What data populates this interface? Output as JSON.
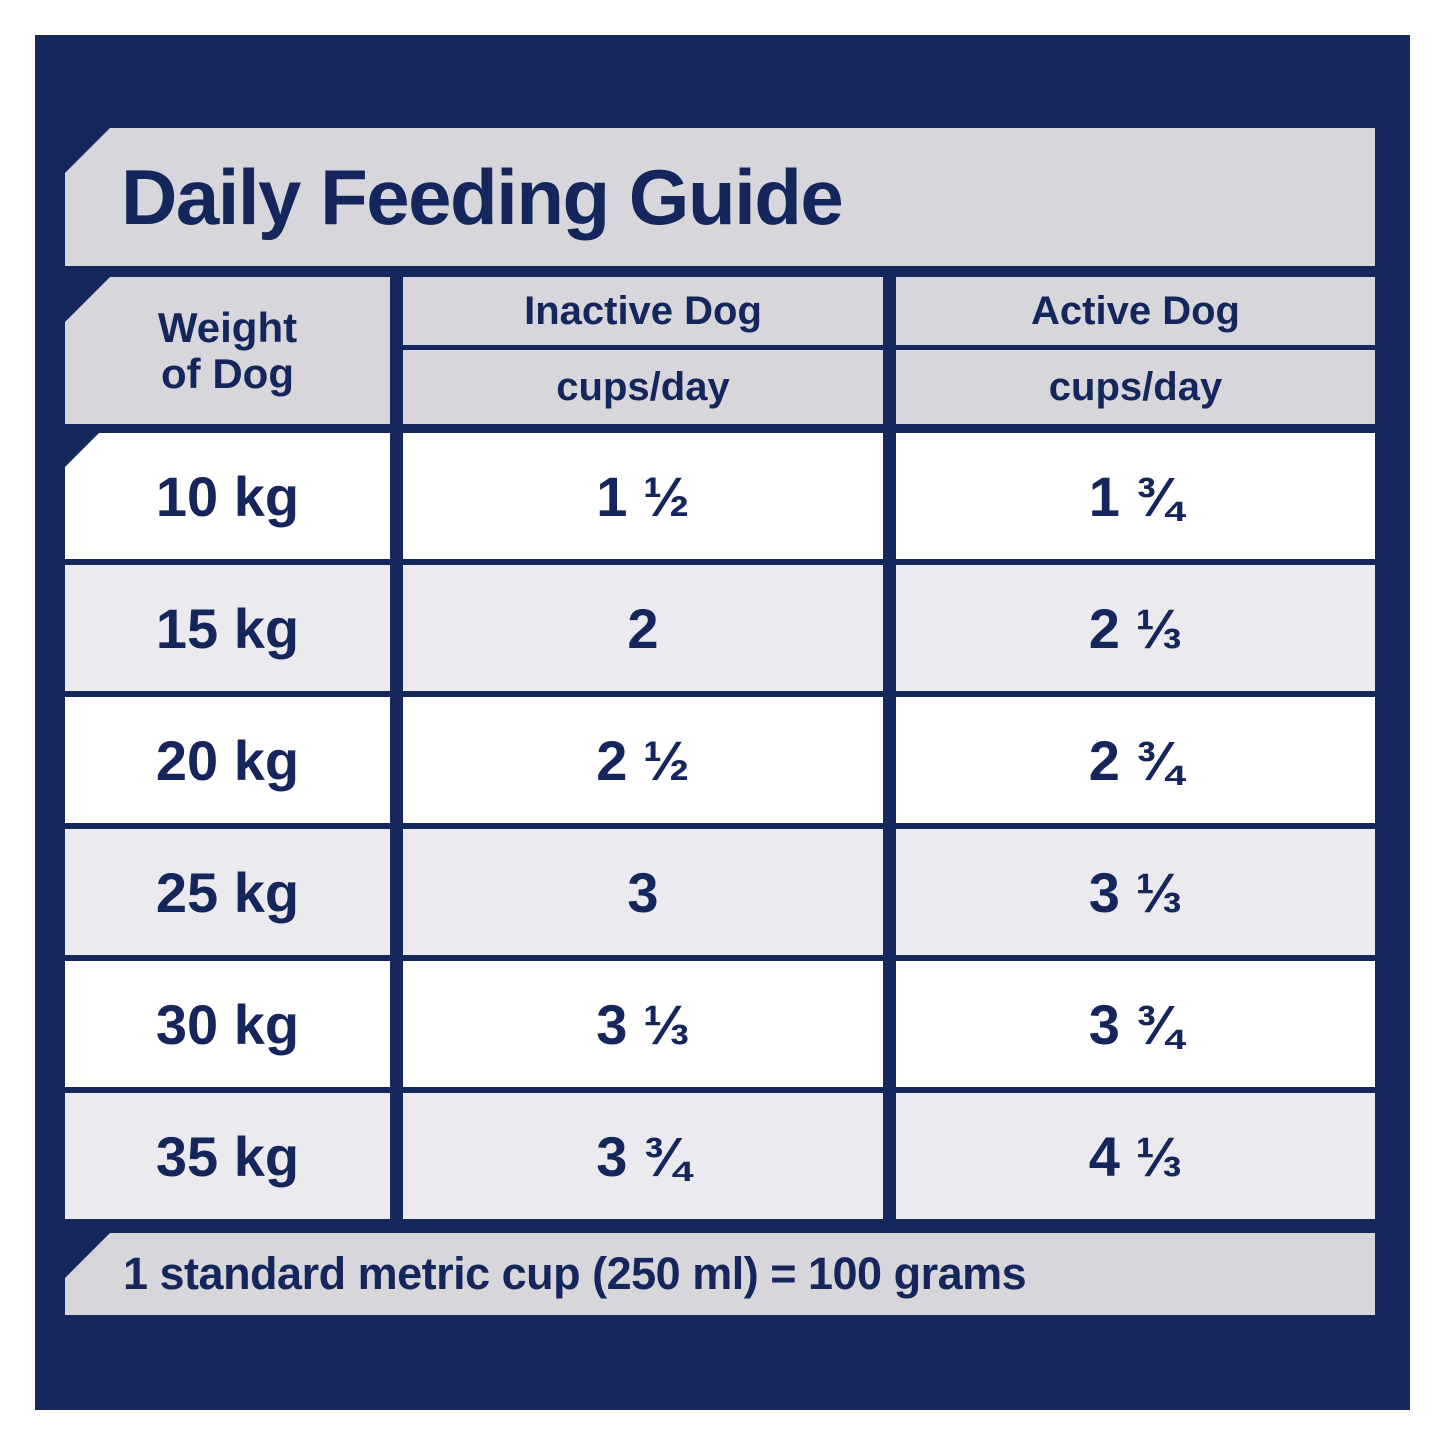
{
  "colors": {
    "page_background": "#FFFFFF",
    "panel_navy": "#16275B",
    "banner_gray": "#D7D7DB",
    "row_gray": "#EAEAEF",
    "row_white": "#FFFFFF",
    "text_navy": "#14265B"
  },
  "title": "Daily Feeding Guide",
  "table": {
    "weight_header_line1": "Weight",
    "weight_header_line2": "of Dog",
    "inactive_header": "Inactive Dog",
    "inactive_subheader": "cups/day",
    "active_header": "Active Dog",
    "active_subheader": "cups/day",
    "rows": [
      {
        "weight": "10 kg",
        "inactive": "1 ½",
        "active": "1 ¾"
      },
      {
        "weight": "15 kg",
        "inactive": "2",
        "active": "2 ⅓"
      },
      {
        "weight": "20 kg",
        "inactive": "2 ½",
        "active": "2 ¾"
      },
      {
        "weight": "25 kg",
        "inactive": "3",
        "active": "3 ⅓"
      },
      {
        "weight": "30 kg",
        "inactive": "3 ⅓",
        "active": "3 ¾"
      },
      {
        "weight": "35 kg",
        "inactive": "3 ¾",
        "active": "4 ⅓"
      }
    ]
  },
  "footer_note": "1 standard metric cup (250 ml) = 100 grams"
}
